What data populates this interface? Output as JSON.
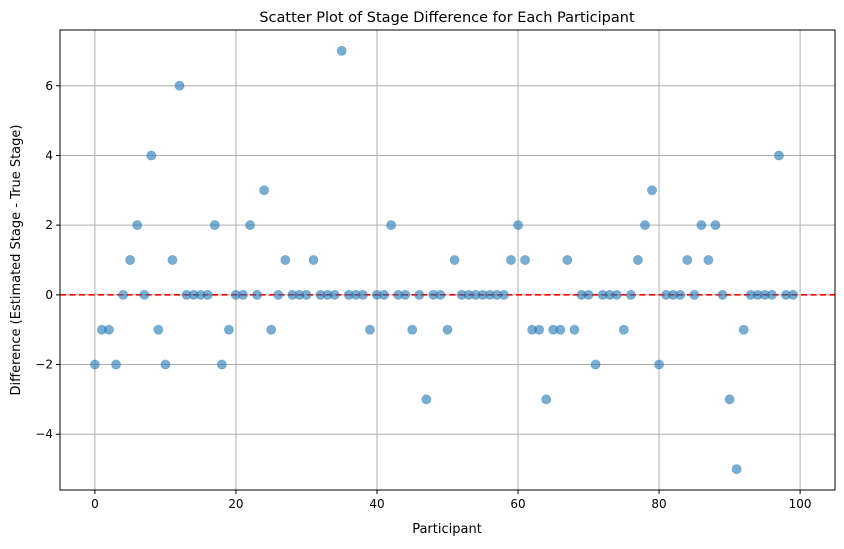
{
  "chart_data": {
    "type": "scatter",
    "title": "Scatter Plot of Stage Difference for Each Participant",
    "xlabel": "Participant",
    "ylabel": "Difference (Estimated Stage - True Stage)",
    "xlim": [
      -4.95,
      104.95
    ],
    "ylim": [
      -5.6,
      7.6
    ],
    "xticks": [
      0,
      20,
      40,
      60,
      80,
      100
    ],
    "yticks": [
      -4,
      -2,
      0,
      2,
      4,
      6
    ],
    "grid": true,
    "reference_line": {
      "y": 0,
      "style": "dashed",
      "color": "#ff0000"
    },
    "point_color": "#1f77b4",
    "point_alpha": 0.6,
    "x": [
      0,
      1,
      2,
      3,
      4,
      5,
      6,
      7,
      8,
      9,
      10,
      11,
      12,
      13,
      14,
      15,
      16,
      17,
      18,
      19,
      20,
      21,
      22,
      23,
      24,
      25,
      26,
      27,
      28,
      29,
      30,
      31,
      32,
      33,
      34,
      35,
      36,
      37,
      38,
      39,
      40,
      41,
      42,
      43,
      44,
      45,
      46,
      47,
      48,
      49,
      50,
      51,
      52,
      53,
      54,
      55,
      56,
      57,
      58,
      59,
      60,
      61,
      62,
      63,
      64,
      65,
      66,
      67,
      68,
      69,
      70,
      71,
      72,
      73,
      74,
      75,
      76,
      77,
      78,
      79,
      80,
      81,
      82,
      83,
      84,
      85,
      86,
      87,
      88,
      89,
      90,
      91,
      92,
      93,
      94,
      95,
      96,
      97,
      98,
      99
    ],
    "y": [
      -2,
      -1,
      -1,
      -2,
      0,
      1,
      2,
      0,
      4,
      -1,
      -2,
      1,
      6,
      0,
      0,
      0,
      0,
      2,
      -2,
      -1,
      0,
      0,
      2,
      0,
      3,
      -1,
      0,
      1,
      0,
      0,
      0,
      1,
      0,
      0,
      0,
      7,
      0,
      0,
      0,
      -1,
      0,
      0,
      2,
      0,
      0,
      -1,
      0,
      -3,
      0,
      0,
      -1,
      1,
      0,
      0,
      0,
      0,
      0,
      0,
      0,
      1,
      2,
      1,
      -1,
      -1,
      -3,
      -1,
      -1,
      1,
      -1,
      0,
      0,
      -2,
      0,
      0,
      0,
      -1,
      0,
      1,
      2,
      3,
      -2,
      0,
      0,
      0,
      1,
      0,
      2,
      1,
      2,
      0,
      -3,
      -5,
      -1,
      0,
      0,
      0,
      0,
      4,
      0,
      0
    ]
  }
}
